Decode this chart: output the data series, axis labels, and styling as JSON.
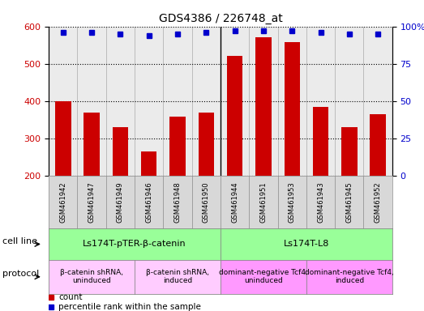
{
  "title": "GDS4386 / 226748_at",
  "samples": [
    "GSM461942",
    "GSM461947",
    "GSM461949",
    "GSM461946",
    "GSM461948",
    "GSM461950",
    "GSM461944",
    "GSM461951",
    "GSM461953",
    "GSM461943",
    "GSM461945",
    "GSM461952"
  ],
  "counts": [
    400,
    370,
    330,
    265,
    358,
    370,
    522,
    572,
    557,
    385,
    330,
    365
  ],
  "percentile_ranks": [
    96,
    96,
    95,
    94,
    95,
    96,
    97,
    97,
    97,
    96,
    95,
    95
  ],
  "ylim_left": [
    200,
    600
  ],
  "ylim_right": [
    0,
    100
  ],
  "yticks_left": [
    200,
    300,
    400,
    500,
    600
  ],
  "yticks_right": [
    0,
    25,
    50,
    75,
    100
  ],
  "bar_color": "#cc0000",
  "dot_color": "#0000cc",
  "cell_line_groups": [
    {
      "label": "Ls174T-pTER-β-catenin",
      "start": 0,
      "end": 6,
      "color": "#99ff99"
    },
    {
      "label": "Ls174T-L8",
      "start": 6,
      "end": 12,
      "color": "#99ff99"
    }
  ],
  "protocol_groups": [
    {
      "label": "β-catenin shRNA,\nuninduced",
      "start": 0,
      "end": 3,
      "color": "#ffccff"
    },
    {
      "label": "β-catenin shRNA,\ninduced",
      "start": 3,
      "end": 6,
      "color": "#ffccff"
    },
    {
      "label": "dominant-negative Tcf4,\nuninduced",
      "start": 6,
      "end": 9,
      "color": "#ff99ff"
    },
    {
      "label": "dominant-negative Tcf4,\ninduced",
      "start": 9,
      "end": 12,
      "color": "#ff99ff"
    }
  ],
  "tick_label_color_left": "#cc0000",
  "tick_label_color_right": "#0000cc",
  "sample_box_color": "#d8d8d8",
  "fig_width": 5.23,
  "fig_height": 3.84,
  "dpi": 100
}
